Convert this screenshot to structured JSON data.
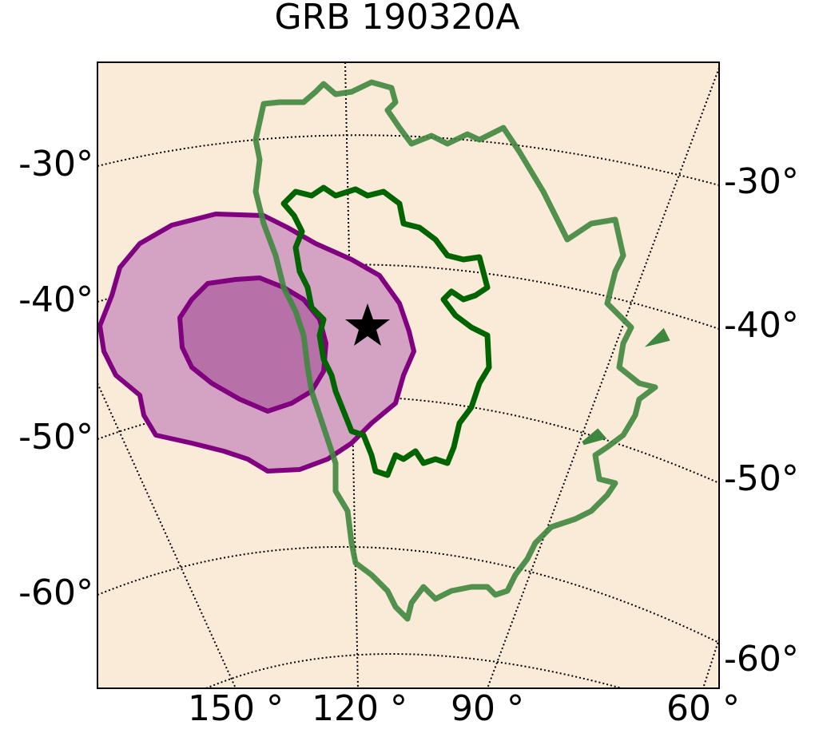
{
  "title": "GRB 190320A",
  "left_labels": [
    "-30°",
    "-40°",
    "-50°",
    "-60°"
  ],
  "right_labels": [
    "-30°",
    "-40°",
    "-50°",
    "-60°"
  ],
  "bottom_labels": [
    "150 °",
    "120 °",
    "90 °",
    "60 °"
  ]
}
